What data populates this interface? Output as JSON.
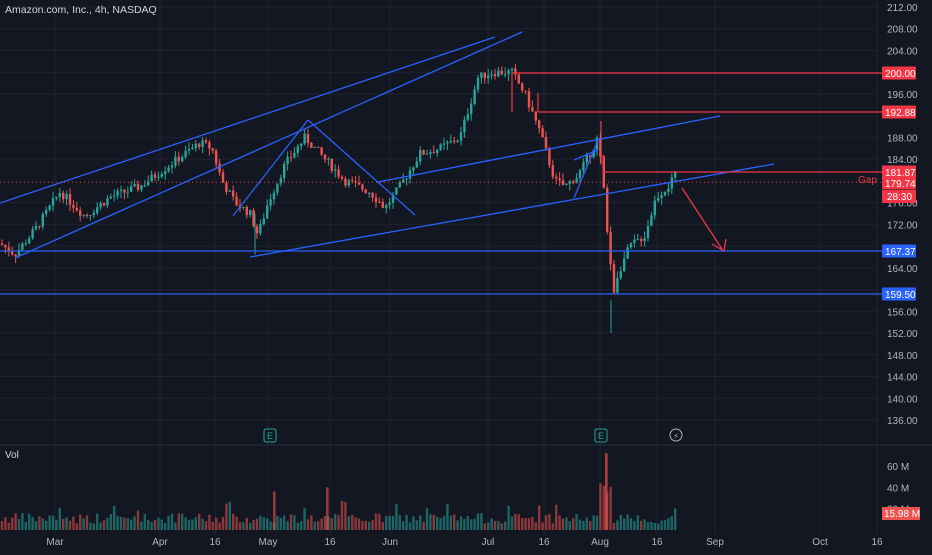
{
  "chart_data": {
    "type": "candlestick",
    "title": "Amazon.com, Inc., 4h, NASDAQ",
    "volume_label": "Vol",
    "price_axis_ticks": [
      212.0,
      208.0,
      204.0,
      200.0,
      196.0,
      188.0,
      184.0,
      176.0,
      172.0,
      168.0,
      164.0,
      160.0,
      156.0,
      152.0,
      148.0,
      144.0,
      140.0,
      136.0
    ],
    "price_axis_ticks_text": [
      "212.00",
      "208.00",
      "204.00",
      "196.00",
      "188.00",
      "184.00",
      "176.00",
      "172.00",
      "164.00",
      "156.00",
      "152.00",
      "148.00",
      "144.00",
      "140.00",
      "136.00"
    ],
    "volume_axis_ticks": [
      "60 M",
      "40 M",
      "20 M"
    ],
    "volume_axis_values": [
      60,
      40,
      20
    ],
    "time_axis_labels": [
      "Mar",
      "Apr",
      "16",
      "May",
      "16",
      "Jun",
      "Jul",
      "16",
      "Aug",
      "16",
      "Sep",
      "Oct",
      "16"
    ],
    "price_range": [
      133.5,
      214
    ],
    "volume_range": [
      0,
      80
    ],
    "price_levels": [
      {
        "value": 200.0,
        "label": "200.00",
        "color": "#f23645"
      },
      {
        "value": 192.88,
        "label": "192.88",
        "color": "#f23645"
      },
      {
        "value": 181.87,
        "label": "181.87",
        "color": "#f23645"
      },
      {
        "value": 179.74,
        "label": "179.74",
        "color": "#f23645"
      },
      {
        "value": 167.37,
        "label": "167.37",
        "color": "#2962ff"
      },
      {
        "value": 159.5,
        "label": "159.50",
        "color": "#2962ff"
      }
    ],
    "countdown": "28:30",
    "last_volume_label": "15.98 M",
    "gap_label": "Gap",
    "last_price": 179.74,
    "grid": true,
    "colors": {
      "background": "#131722",
      "up": "#26a69a",
      "down": "#ef5350",
      "trendline": "#2962ff",
      "resistance": "#f23645",
      "text": "#b2b5be",
      "grid": "#1f2330"
    },
    "earnings_markers": [
      "E",
      "E"
    ],
    "dividend_marker": "⚡"
  }
}
